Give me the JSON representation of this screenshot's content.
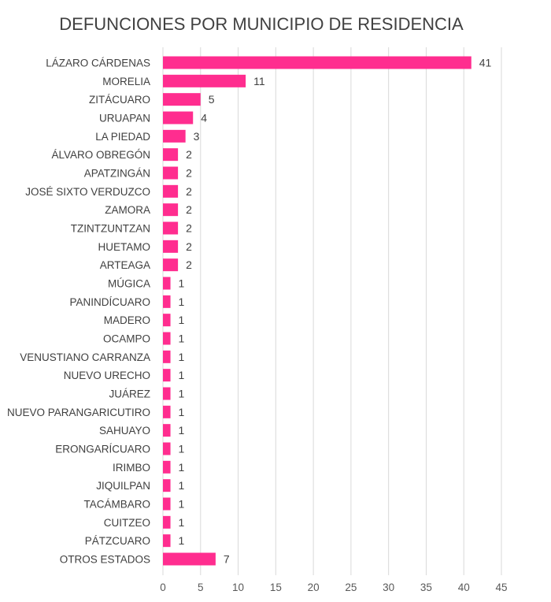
{
  "chart_data": {
    "type": "bar",
    "orientation": "horizontal",
    "title": "DEFUNCIONES POR MUNICIPIO DE RESIDENCIA",
    "xlabel": "",
    "ylabel": "",
    "categories": [
      "LÁZARO CÁRDENAS",
      "MORELIA",
      "ZITÁCUARO",
      "URUAPAN",
      "LA PIEDAD",
      "ÁLVARO OBREGÓN",
      "APATZINGÁN",
      "JOSÉ SIXTO VERDUZCO",
      "ZAMORA",
      "TZINTZUNTZAN",
      "HUETAMO",
      "ARTEAGA",
      "MÚGICA",
      "PANINDÍCUARO",
      "MADERO",
      "OCAMPO",
      "VENUSTIANO CARRANZA",
      "NUEVO URECHO",
      "JUÁREZ",
      "NUEVO PARANGARICUTIRO",
      "SAHUAYO",
      "ERONGARÍCUARO",
      "IRIMBO",
      "JIQUILPAN",
      "TACÁMBARO",
      "CUITZEO",
      "PÁTZCUARO",
      "OTROS ESTADOS"
    ],
    "values": [
      41,
      11,
      5,
      4,
      3,
      2,
      2,
      2,
      2,
      2,
      2,
      2,
      1,
      1,
      1,
      1,
      1,
      1,
      1,
      1,
      1,
      1,
      1,
      1,
      1,
      1,
      1,
      7
    ],
    "xlim": [
      0,
      45
    ],
    "xticks": [
      0,
      5,
      10,
      15,
      20,
      25,
      30,
      35,
      40,
      45
    ],
    "grid": "vertical",
    "data_labels": true,
    "legend": "none",
    "bar_color": "#ff2d8f"
  }
}
